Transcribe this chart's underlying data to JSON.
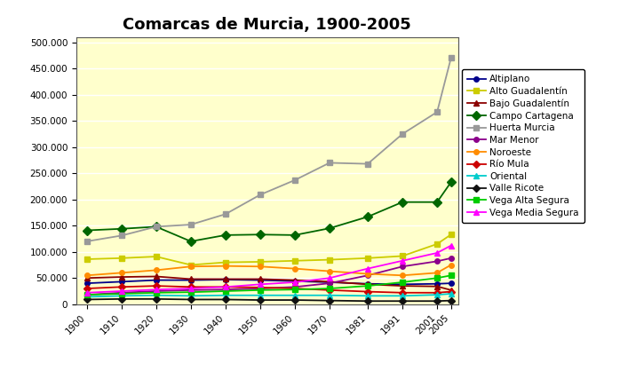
{
  "title": "Comarcas de Murcia, 1900-2005",
  "years": [
    1900,
    1910,
    1920,
    1930,
    1940,
    1950,
    1960,
    1970,
    1981,
    1991,
    2001,
    2005
  ],
  "series": [
    {
      "name": "Altiplano",
      "color": "#00008B",
      "marker": "o",
      "markersize": 4,
      "values": [
        40000,
        43000,
        46000,
        46000,
        47000,
        46000,
        44000,
        42000,
        39000,
        38000,
        39000,
        40000
      ]
    },
    {
      "name": "Alto Guadalentín",
      "color": "#CCCC00",
      "marker": "s",
      "markersize": 5,
      "values": [
        86000,
        88000,
        91000,
        75000,
        80000,
        81000,
        83000,
        85000,
        88000,
        92000,
        115000,
        133000
      ]
    },
    {
      "name": "Bajo Guadalentín",
      "color": "#8B0000",
      "marker": "^",
      "markersize": 4,
      "values": [
        50000,
        52000,
        53000,
        48000,
        48000,
        48000,
        46000,
        43000,
        38000,
        35000,
        34000,
        27000
      ]
    },
    {
      "name": "Campo Cartagena",
      "color": "#006600",
      "marker": "D",
      "markersize": 5,
      "values": [
        141000,
        144000,
        148000,
        120000,
        132000,
        133000,
        132000,
        145000,
        167000,
        195000,
        195000,
        233000
      ]
    },
    {
      "name": "Huerta Murcia",
      "color": "#999999",
      "marker": "s",
      "markersize": 5,
      "values": [
        120000,
        131000,
        148000,
        152000,
        172000,
        209000,
        237000,
        270000,
        268000,
        325000,
        367000,
        470000
      ]
    },
    {
      "name": "Mar Menor",
      "color": "#8B008B",
      "marker": "o",
      "markersize": 4,
      "values": [
        18000,
        22000,
        25000,
        27000,
        28000,
        30000,
        33000,
        40000,
        55000,
        72000,
        82000,
        88000
      ]
    },
    {
      "name": "Noroeste",
      "color": "#FF8C00",
      "marker": "o",
      "markersize": 4,
      "values": [
        55000,
        60000,
        65000,
        72000,
        73000,
        72000,
        68000,
        63000,
        58000,
        55000,
        60000,
        75000
      ]
    },
    {
      "name": "Río Mula",
      "color": "#CC0000",
      "marker": "D",
      "markersize": 4,
      "values": [
        30000,
        33000,
        35000,
        33000,
        33000,
        32000,
        30000,
        27000,
        24000,
        22000,
        22000,
        24000
      ]
    },
    {
      "name": "Oriental",
      "color": "#00CCCC",
      "marker": "^",
      "markersize": 4,
      "values": [
        14000,
        16000,
        17000,
        16000,
        17000,
        17000,
        17000,
        17000,
        16000,
        16000,
        18000,
        20000
      ]
    },
    {
      "name": "Valle Ricote",
      "color": "#111111",
      "marker": "D",
      "markersize": 4,
      "values": [
        9000,
        10000,
        10000,
        9000,
        9000,
        8000,
        8000,
        7000,
        6000,
        6000,
        6000,
        7000
      ]
    },
    {
      "name": "Vega Alta Segura",
      "color": "#00CC00",
      "marker": "s",
      "markersize": 5,
      "values": [
        18000,
        20000,
        22000,
        23000,
        25000,
        27000,
        28000,
        30000,
        35000,
        42000,
        50000,
        55000
      ]
    },
    {
      "name": "Vega Media Segura",
      "color": "#FF00FF",
      "marker": "^",
      "markersize": 5,
      "values": [
        22000,
        25000,
        28000,
        30000,
        33000,
        38000,
        42000,
        50000,
        68000,
        83000,
        98000,
        112000
      ]
    }
  ],
  "yticks": [
    0,
    50000,
    100000,
    150000,
    200000,
    250000,
    300000,
    350000,
    400000,
    450000,
    500000
  ],
  "ylim": [
    0,
    510000
  ],
  "plot_bg": "#FFFFCC",
  "fig_bg": "#FFFFFF",
  "grid_color": "#FFFFFF",
  "title_fontsize": 13
}
